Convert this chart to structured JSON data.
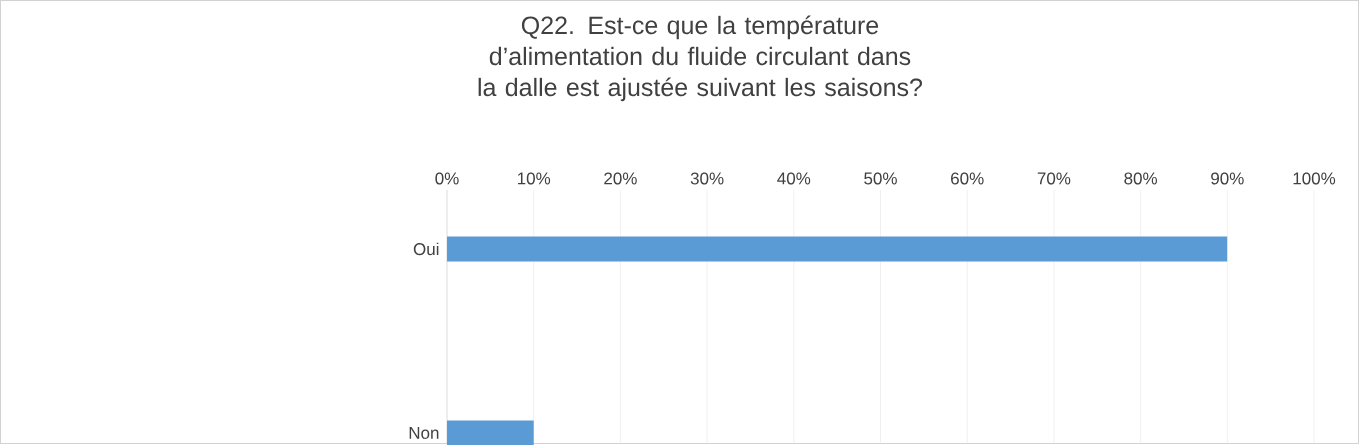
{
  "chart_data": {
    "type": "bar",
    "orientation": "horizontal",
    "title": "Q22.        Est-ce que la température d’alimentation du fluide circulant dans la dalle est ajustée suivant les saisons?",
    "categories": [
      "Oui",
      "Non"
    ],
    "values": [
      90,
      10
    ],
    "color": "#5b9bd5",
    "xlim": [
      0,
      100
    ],
    "xticks": [
      {
        "value": 0,
        "label": "0%"
      },
      {
        "value": 10,
        "label": "10%"
      },
      {
        "value": 20,
        "label": "20%"
      },
      {
        "value": 30,
        "label": "30%"
      },
      {
        "value": 40,
        "label": "40%"
      },
      {
        "value": 50,
        "label": "50%"
      },
      {
        "value": 60,
        "label": "60%"
      },
      {
        "value": 70,
        "label": "70%"
      },
      {
        "value": 80,
        "label": "80%"
      },
      {
        "value": 90,
        "label": "90%"
      },
      {
        "value": 100,
        "label": "100%"
      }
    ],
    "grid": "x"
  }
}
